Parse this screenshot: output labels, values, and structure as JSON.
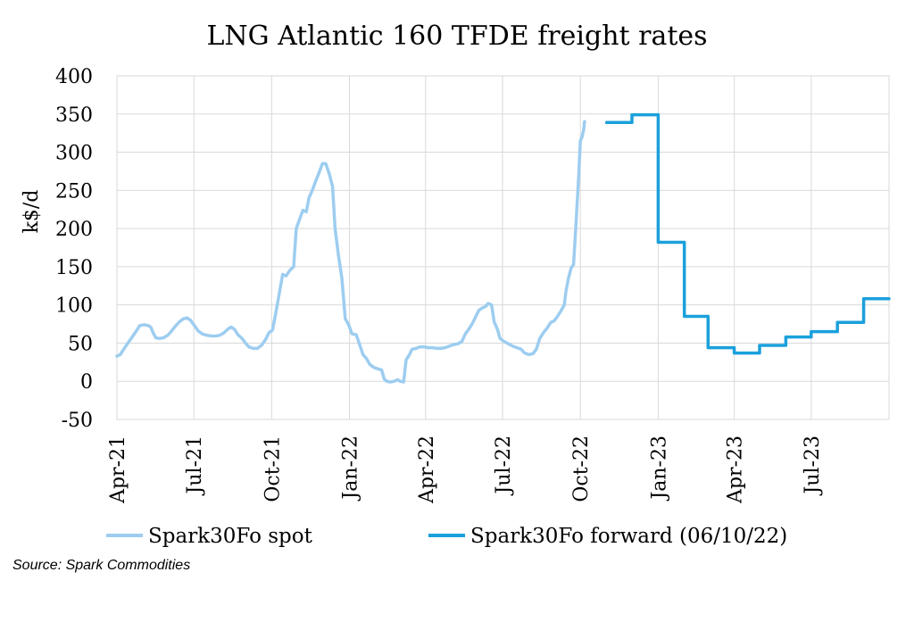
{
  "source_note": "Source: Spark Commodities",
  "chart_data": {
    "type": "line",
    "title": "LNG Atlantic 160 TFDE freight rates",
    "ylabel": "k$/d",
    "xlabel": "",
    "ylim": [
      -50,
      400
    ],
    "yticks": [
      -50,
      0,
      50,
      100,
      150,
      200,
      250,
      300,
      350,
      400
    ],
    "xlim": [
      "2021-04-01",
      "2023-10-01"
    ],
    "xticks": [
      {
        "date": "2021-04-01",
        "label": "Apr-21"
      },
      {
        "date": "2021-07-01",
        "label": "Jul-21"
      },
      {
        "date": "2021-10-01",
        "label": "Oct-21"
      },
      {
        "date": "2022-01-01",
        "label": "Jan-22"
      },
      {
        "date": "2022-04-01",
        "label": "Apr-22"
      },
      {
        "date": "2022-07-01",
        "label": "Jul-22"
      },
      {
        "date": "2022-10-01",
        "label": "Oct-22"
      },
      {
        "date": "2023-01-01",
        "label": "Jan-23"
      },
      {
        "date": "2023-04-01",
        "label": "Apr-23"
      },
      {
        "date": "2023-07-01",
        "label": "Jul-23"
      }
    ],
    "grid": true,
    "legend_position": "bottom",
    "series": [
      {
        "name": "Spark30Fo spot",
        "color": "#9dcdf0",
        "step": false,
        "points": [
          [
            "2021-04-01",
            33
          ],
          [
            "2021-04-05",
            35
          ],
          [
            "2021-04-09",
            42
          ],
          [
            "2021-04-14",
            50
          ],
          [
            "2021-04-19",
            58
          ],
          [
            "2021-04-24",
            66
          ],
          [
            "2021-04-28",
            73
          ],
          [
            "2021-05-03",
            74
          ],
          [
            "2021-05-08",
            73
          ],
          [
            "2021-05-11",
            71
          ],
          [
            "2021-05-14",
            63
          ],
          [
            "2021-05-17",
            57
          ],
          [
            "2021-05-21",
            56
          ],
          [
            "2021-05-26",
            57
          ],
          [
            "2021-05-31",
            60
          ],
          [
            "2021-06-04",
            65
          ],
          [
            "2021-06-09",
            72
          ],
          [
            "2021-06-14",
            78
          ],
          [
            "2021-06-19",
            82
          ],
          [
            "2021-06-23",
            83
          ],
          [
            "2021-06-27",
            80
          ],
          [
            "2021-07-01",
            74
          ],
          [
            "2021-07-06",
            66
          ],
          [
            "2021-07-11",
            62
          ],
          [
            "2021-07-17",
            60
          ],
          [
            "2021-07-24",
            59
          ],
          [
            "2021-07-31",
            60
          ],
          [
            "2021-08-05",
            63
          ],
          [
            "2021-08-10",
            68
          ],
          [
            "2021-08-14",
            71
          ],
          [
            "2021-08-18",
            68
          ],
          [
            "2021-08-22",
            61
          ],
          [
            "2021-08-27",
            56
          ],
          [
            "2021-08-31",
            50
          ],
          [
            "2021-09-04",
            45
          ],
          [
            "2021-09-09",
            43
          ],
          [
            "2021-09-14",
            43
          ],
          [
            "2021-09-19",
            47
          ],
          [
            "2021-09-24",
            55
          ],
          [
            "2021-09-28",
            64
          ],
          [
            "2021-10-02",
            67
          ],
          [
            "2021-10-06",
            90
          ],
          [
            "2021-10-10",
            115
          ],
          [
            "2021-10-14",
            140
          ],
          [
            "2021-10-18",
            138
          ],
          [
            "2021-10-23",
            146
          ],
          [
            "2021-10-27",
            150
          ],
          [
            "2021-10-30",
            200
          ],
          [
            "2021-11-03",
            212
          ],
          [
            "2021-11-07",
            224
          ],
          [
            "2021-11-11",
            222
          ],
          [
            "2021-11-14",
            240
          ],
          [
            "2021-11-18",
            250
          ],
          [
            "2021-11-22",
            262
          ],
          [
            "2021-11-26",
            273
          ],
          [
            "2021-11-30",
            285
          ],
          [
            "2021-12-04",
            285
          ],
          [
            "2021-12-08",
            272
          ],
          [
            "2021-12-12",
            255
          ],
          [
            "2021-12-15",
            200
          ],
          [
            "2021-12-19",
            165
          ],
          [
            "2021-12-23",
            135
          ],
          [
            "2021-12-27",
            82
          ],
          [
            "2021-12-31",
            74
          ],
          [
            "2022-01-04",
            62
          ],
          [
            "2022-01-09",
            61
          ],
          [
            "2022-01-13",
            48
          ],
          [
            "2022-01-17",
            35
          ],
          [
            "2022-01-21",
            30
          ],
          [
            "2022-01-25",
            22
          ],
          [
            "2022-01-30",
            18
          ],
          [
            "2022-02-04",
            16
          ],
          [
            "2022-02-08",
            15
          ],
          [
            "2022-02-11",
            3
          ],
          [
            "2022-02-14",
            0
          ],
          [
            "2022-02-18",
            -1
          ],
          [
            "2022-02-23",
            0
          ],
          [
            "2022-02-27",
            2
          ],
          [
            "2022-03-02",
            0
          ],
          [
            "2022-03-06",
            -1
          ],
          [
            "2022-03-09",
            28
          ],
          [
            "2022-03-13",
            35
          ],
          [
            "2022-03-16",
            42
          ],
          [
            "2022-03-21",
            43
          ],
          [
            "2022-03-25",
            45
          ],
          [
            "2022-03-30",
            45
          ],
          [
            "2022-04-04",
            44
          ],
          [
            "2022-04-09",
            44
          ],
          [
            "2022-04-14",
            43
          ],
          [
            "2022-04-19",
            43
          ],
          [
            "2022-04-24",
            44
          ],
          [
            "2022-04-29",
            46
          ],
          [
            "2022-05-04",
            48
          ],
          [
            "2022-05-09",
            49
          ],
          [
            "2022-05-14",
            52
          ],
          [
            "2022-05-18",
            62
          ],
          [
            "2022-05-22",
            68
          ],
          [
            "2022-05-26",
            75
          ],
          [
            "2022-05-30",
            84
          ],
          [
            "2022-06-03",
            93
          ],
          [
            "2022-06-07",
            96
          ],
          [
            "2022-06-11",
            98
          ],
          [
            "2022-06-14",
            102
          ],
          [
            "2022-06-18",
            100
          ],
          [
            "2022-06-21",
            78
          ],
          [
            "2022-06-25",
            68
          ],
          [
            "2022-06-28",
            56
          ],
          [
            "2022-07-03",
            52
          ],
          [
            "2022-07-08",
            49
          ],
          [
            "2022-07-13",
            46
          ],
          [
            "2022-07-18",
            44
          ],
          [
            "2022-07-23",
            42
          ],
          [
            "2022-07-27",
            37
          ],
          [
            "2022-08-01",
            35
          ],
          [
            "2022-08-06",
            36
          ],
          [
            "2022-08-10",
            42
          ],
          [
            "2022-08-14",
            56
          ],
          [
            "2022-08-18",
            63
          ],
          [
            "2022-08-23",
            70
          ],
          [
            "2022-08-27",
            77
          ],
          [
            "2022-08-31",
            79
          ],
          [
            "2022-09-04",
            85
          ],
          [
            "2022-09-08",
            92
          ],
          [
            "2022-09-12",
            100
          ],
          [
            "2022-09-14",
            118
          ],
          [
            "2022-09-17",
            135
          ],
          [
            "2022-09-20",
            148
          ],
          [
            "2022-09-23",
            153
          ],
          [
            "2022-09-26",
            210
          ],
          [
            "2022-09-29",
            268
          ],
          [
            "2022-10-01",
            315
          ],
          [
            "2022-10-03",
            320
          ],
          [
            "2022-10-05",
            330
          ],
          [
            "2022-10-06",
            340
          ]
        ]
      },
      {
        "name": "Spark30Fo forward (06/10/22)",
        "color": "#1ba0dc",
        "step": true,
        "points": [
          [
            "2022-11-01",
            339
          ],
          [
            "2022-12-01",
            349
          ],
          [
            "2023-01-01",
            182
          ],
          [
            "2023-02-01",
            85
          ],
          [
            "2023-03-01",
            44
          ],
          [
            "2023-04-01",
            37
          ],
          [
            "2023-05-01",
            47
          ],
          [
            "2023-06-01",
            58
          ],
          [
            "2023-07-01",
            65
          ],
          [
            "2023-08-01",
            77
          ],
          [
            "2023-09-01",
            108
          ],
          [
            "2023-10-01",
            108
          ]
        ]
      }
    ]
  }
}
